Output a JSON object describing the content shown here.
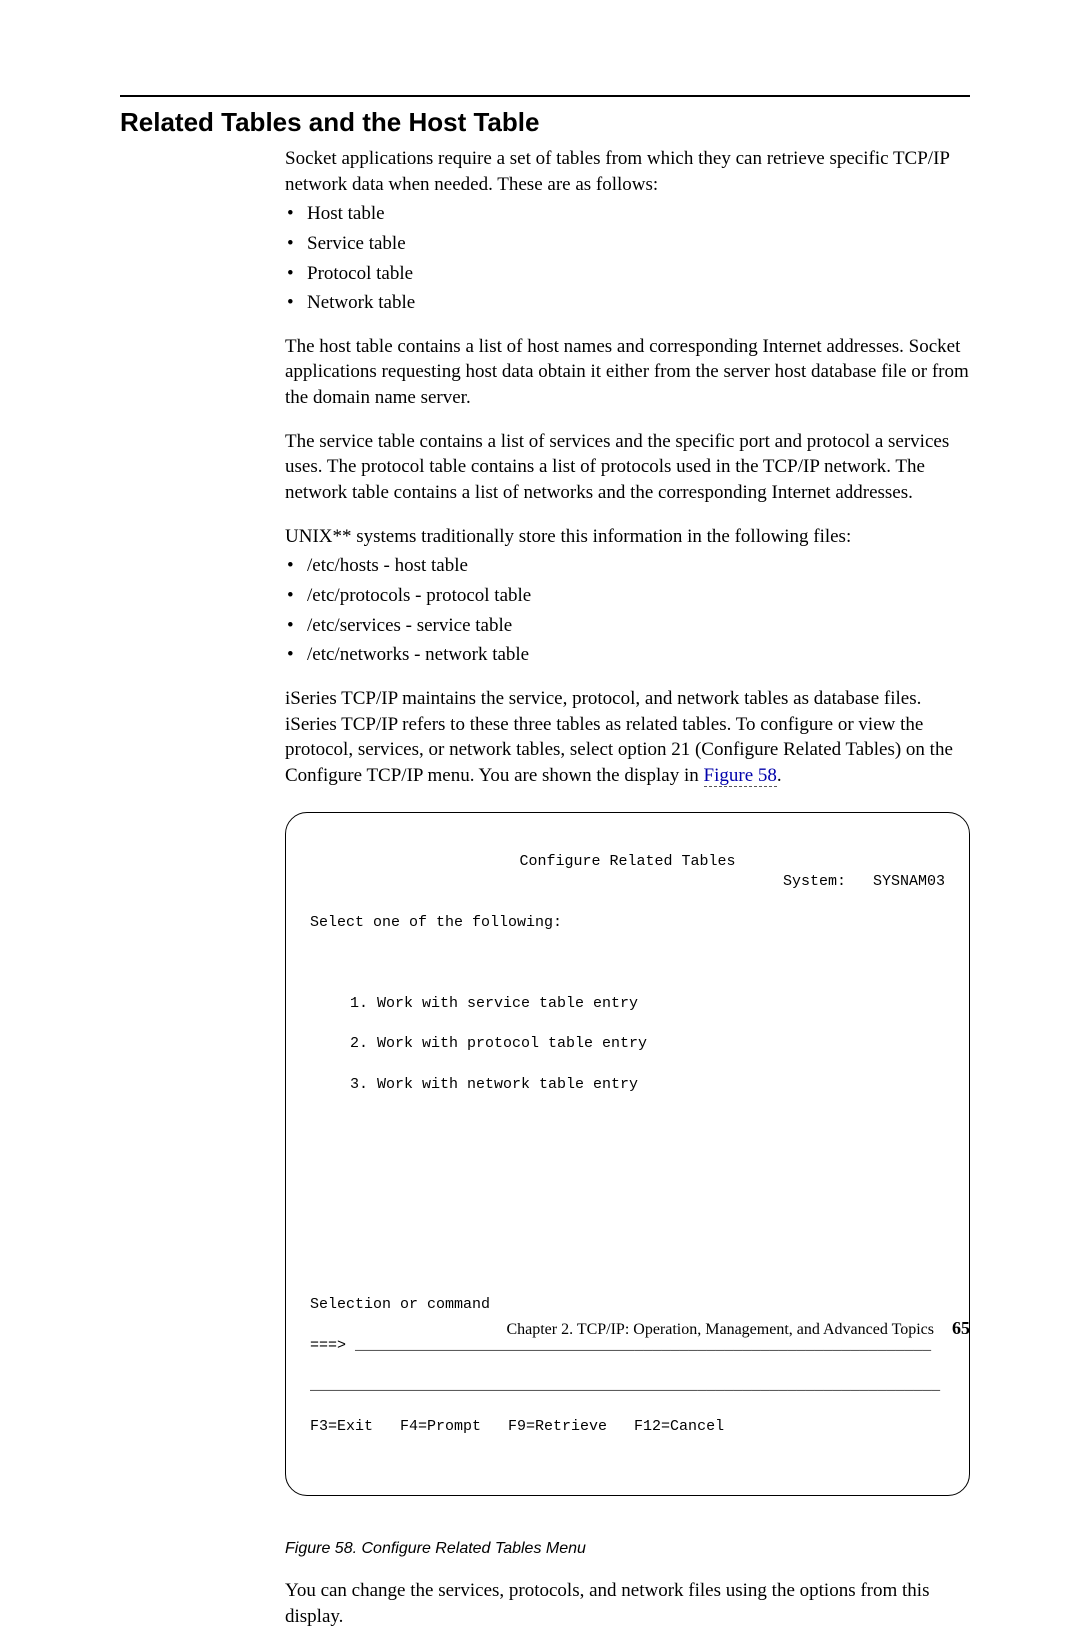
{
  "heading": "Related Tables and the Host Table",
  "intro": "Socket applications require a set of tables from which they can retrieve specific TCP/IP network data when needed. These are as follows:",
  "tables_list": [
    "Host table",
    "Service table",
    "Protocol table",
    "Network table"
  ],
  "para_host": "The host table contains a list of host names and corresponding Internet addresses. Socket applications requesting host data obtain it either from the server host database file or from the domain name server.",
  "para_service": "The service table contains a list of services and the specific port and protocol a services uses. The protocol table contains a list of protocols used in the TCP/IP network. The network table contains a list of networks and the corresponding Internet addresses.",
  "para_unix": "UNIX** systems traditionally store this information in the following files:",
  "unix_files": [
    "/etc/hosts - host table",
    "/etc/protocols - protocol table",
    "/etc/services - service table",
    "/etc/networks - network table"
  ],
  "para_iseries_a": "iSeries TCP/IP maintains the service, protocol, and network tables as database files. iSeries TCP/IP refers to these three tables as related tables. To configure or view the protocol, services, or network tables, select option 21 (Configure Related Tables) on the Configure TCP/IP menu. You are shown the display in ",
  "figref_text": "Figure 58",
  "para_iseries_b": ".",
  "terminal": {
    "title": "Configure Related Tables",
    "system_label": "System:",
    "system_value": "SYSNAM03",
    "prompt": "Select one of the following:",
    "options": [
      "1. Work with service table entry",
      "2. Work with protocol table entry",
      "3. Work with network table entry"
    ],
    "selection_label": "Selection or command",
    "cmd_prefix": "===>",
    "fkeys": "F3=Exit   F4=Prompt   F9=Retrieve   F12=Cancel"
  },
  "caption": "Figure 58. Configure Related Tables Menu",
  "closing": "You can change the services, protocols, and network files using the options from this display.",
  "footer_chapter": "Chapter 2. TCP/IP: Operation, Management, and Advanced Topics",
  "footer_page": "65"
}
